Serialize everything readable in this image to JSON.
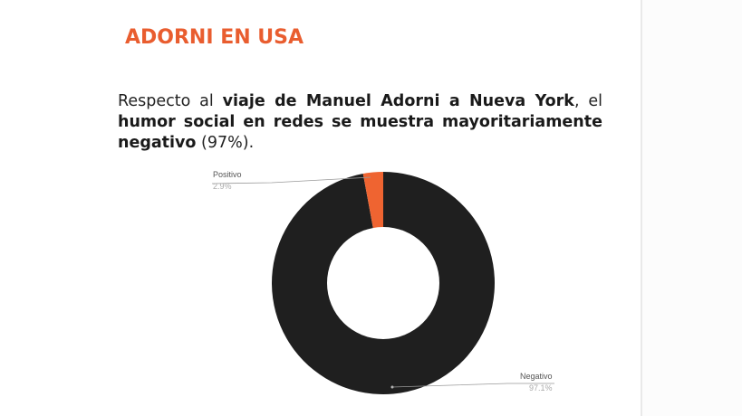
{
  "slide": {
    "title": "ADORNI EN USA",
    "description": {
      "t1": "Respecto al ",
      "b1": "viaje de Manuel Adorni a Nueva York",
      "t2": ", el ",
      "b2": "humor social en redes se muestra mayoritariamente negativo",
      "t3": " (97%)."
    }
  },
  "colors": {
    "accent": "#e95d2f",
    "negative": "#1f1f1f",
    "positive": "#ef6431"
  },
  "chart_data": {
    "type": "pie",
    "donut": true,
    "title": "",
    "categories": [
      "Positivo",
      "Negativo"
    ],
    "values": [
      2.9,
      97.1
    ],
    "labels": [
      {
        "name": "Positivo",
        "pct": "2.9%"
      },
      {
        "name": "Negativo",
        "pct": "97.1%"
      }
    ],
    "legend": "callout labels"
  }
}
